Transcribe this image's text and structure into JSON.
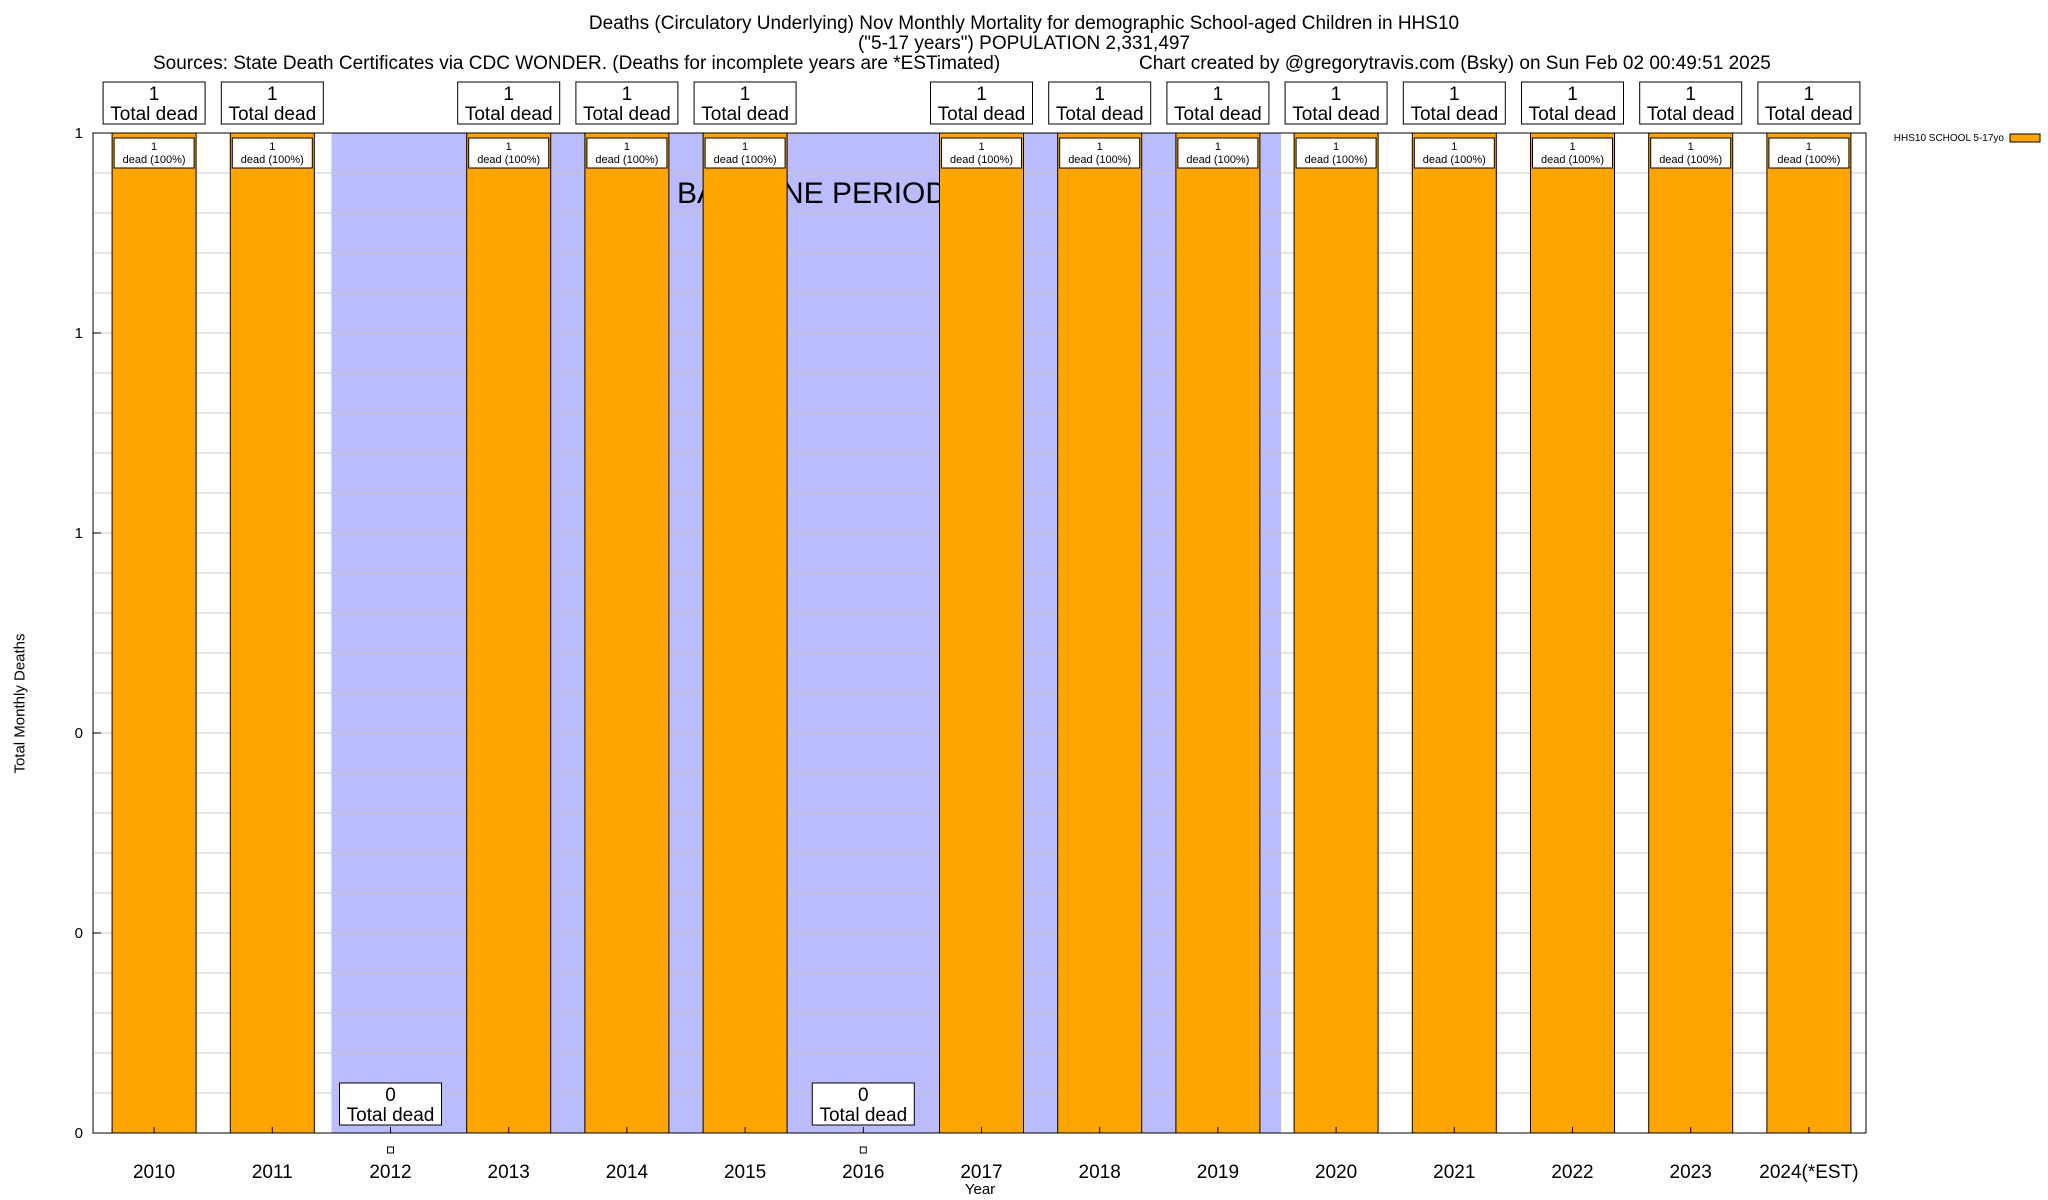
{
  "header": {
    "title_line1": "Deaths (Circulatory Underlying) Nov Monthly Mortality for demographic School-aged Children in HHS10",
    "title_line2": "(\"5-17 years\") POPULATION 2,331,497",
    "sources": "Sources: State Death Certificates via CDC WONDER. (Deaths for incomplete years are *ESTimated)",
    "credit": "Chart created by @gregorytravis.com (Bsky) on Sun Feb 02 00:49:51 2025"
  },
  "chart_data": {
    "type": "bar",
    "xlabel": "Year",
    "ylabel": "Total Monthly Deaths",
    "categories": [
      "2010",
      "2011",
      "2012",
      "2013",
      "2014",
      "2015",
      "2016",
      "2017",
      "2018",
      "2019",
      "2020",
      "2021",
      "2022",
      "2023",
      "2024(*EST)"
    ],
    "series": [
      {
        "name": "HHS10 SCHOOL 5-17yo",
        "values": [
          1,
          1,
          0,
          1,
          1,
          1,
          0,
          1,
          1,
          1,
          1,
          1,
          1,
          1,
          1
        ]
      }
    ],
    "ylim": [
      0,
      1
    ],
    "yticks": [
      {
        "value": 0,
        "label": "0"
      },
      {
        "value": 0.2,
        "label": "0"
      },
      {
        "value": 0.4,
        "label": "0"
      },
      {
        "value": 0.6,
        "label": "1"
      },
      {
        "value": 0.8,
        "label": "1"
      },
      {
        "value": 1.0,
        "label": "1"
      }
    ],
    "total_labels": [
      "1\nTotal dead",
      "1\nTotal dead",
      "0\nTotal dead",
      "1\nTotal dead",
      "1\nTotal dead",
      "1\nTotal dead",
      "0\nTotal dead",
      "1\nTotal dead",
      "1\nTotal dead",
      "1\nTotal dead",
      "1\nTotal dead",
      "1\nTotal dead",
      "1\nTotal dead",
      "1\nTotal dead",
      "1\nTotal dead"
    ],
    "segment_labels": [
      "1\ndead (100%)",
      "1\ndead (100%)",
      "",
      "1\ndead (100%)",
      "1\ndead (100%)",
      "1\ndead (100%)",
      "",
      "1\ndead (100%)",
      "1\ndead (100%)",
      "1\ndead (100%)",
      "1\ndead (100%)",
      "1\ndead (100%)",
      "1\ndead (100%)",
      "1\ndead (100%)",
      "1\ndead (100%)"
    ],
    "baseline_label": "BASELINE PERIOD",
    "baseline_years": [
      "2012",
      "2013",
      "2014",
      "2015",
      "2016",
      "2017",
      "2018",
      "2019"
    ],
    "grid": true,
    "legend_position": "top-right",
    "colors": {
      "bar": "#FFA500",
      "baseline": "#BBBBFF",
      "grid": "#C8C8C8"
    }
  }
}
